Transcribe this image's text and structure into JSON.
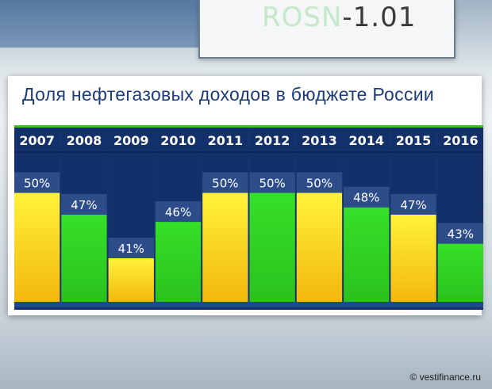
{
  "background": {
    "ticker_faded": "ROSN",
    "ticker_value": "-1.01"
  },
  "chart_data": {
    "type": "bar",
    "title": "Доля нефтегазовых доходов  в бюджете России",
    "categories": [
      "2007",
      "2008",
      "2009",
      "2010",
      "2011",
      "2012",
      "2013",
      "2014",
      "2015",
      "2016"
    ],
    "values": [
      50,
      47,
      41,
      46,
      50,
      50,
      50,
      48,
      47,
      43
    ],
    "value_labels": [
      "50%",
      "47%",
      "41%",
      "46%",
      "50%",
      "50%",
      "50%",
      "48%",
      "47%",
      "43%"
    ],
    "ylim": [
      35,
      52
    ],
    "bar_colors": [
      "yellow",
      "green",
      "yellow",
      "green",
      "yellow",
      "green",
      "yellow",
      "green",
      "yellow",
      "green"
    ]
  },
  "colors": {
    "panel_bg": "#15346e",
    "label_box": "#2c4d8a",
    "green": "#35d522",
    "yellow": "#f7dc1b",
    "title": "#1e3c78",
    "accent_line": "#38c623"
  },
  "credit": "© vestifinance.ru"
}
